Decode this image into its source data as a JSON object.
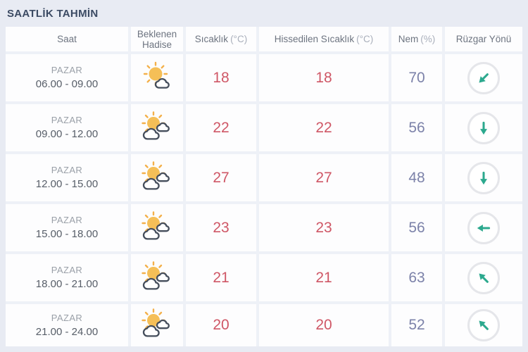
{
  "title": "SAATLİK TAHMİN",
  "colors": {
    "temperature_text": "#cf5766",
    "humidity_text": "#7c82a9",
    "wind_arrow": "#2ca98e",
    "title_text": "#3b4a63",
    "sun": "#f5bf57"
  },
  "table": {
    "headers": [
      {
        "label": "Saat",
        "unit": ""
      },
      {
        "label": "Beklenen Hadise",
        "unit": ""
      },
      {
        "label": "Sıcaklık",
        "unit": "(°C)"
      },
      {
        "label": "Hissedilen Sıcaklık",
        "unit": "(°C)"
      },
      {
        "label": "Nem",
        "unit": "(%)"
      },
      {
        "label": "Rüzgar Yönü",
        "unit": ""
      }
    ],
    "rows": [
      {
        "day": "PAZAR",
        "time": "06.00 - 09.00",
        "icon": "sun-one-cloud",
        "temp": "18",
        "feels": "18",
        "humidity": "70",
        "wind_direction": "southwest",
        "wind_deg": 225
      },
      {
        "day": "PAZAR",
        "time": "09.00 - 12.00",
        "icon": "sun-two-clouds",
        "temp": "22",
        "feels": "22",
        "humidity": "56",
        "wind_direction": "south",
        "wind_deg": 180
      },
      {
        "day": "PAZAR",
        "time": "12.00 - 15.00",
        "icon": "sun-two-clouds",
        "temp": "27",
        "feels": "27",
        "humidity": "48",
        "wind_direction": "south",
        "wind_deg": 180
      },
      {
        "day": "PAZAR",
        "time": "15.00 - 18.00",
        "icon": "sun-two-clouds",
        "temp": "23",
        "feels": "23",
        "humidity": "56",
        "wind_direction": "west",
        "wind_deg": 270
      },
      {
        "day": "PAZAR",
        "time": "18.00 - 21.00",
        "icon": "sun-two-clouds",
        "temp": "21",
        "feels": "21",
        "humidity": "63",
        "wind_direction": "northwest",
        "wind_deg": 315
      },
      {
        "day": "PAZAR",
        "time": "21.00 - 24.00",
        "icon": "sun-two-clouds",
        "temp": "20",
        "feels": "20",
        "humidity": "52",
        "wind_direction": "northwest",
        "wind_deg": 315
      }
    ]
  }
}
